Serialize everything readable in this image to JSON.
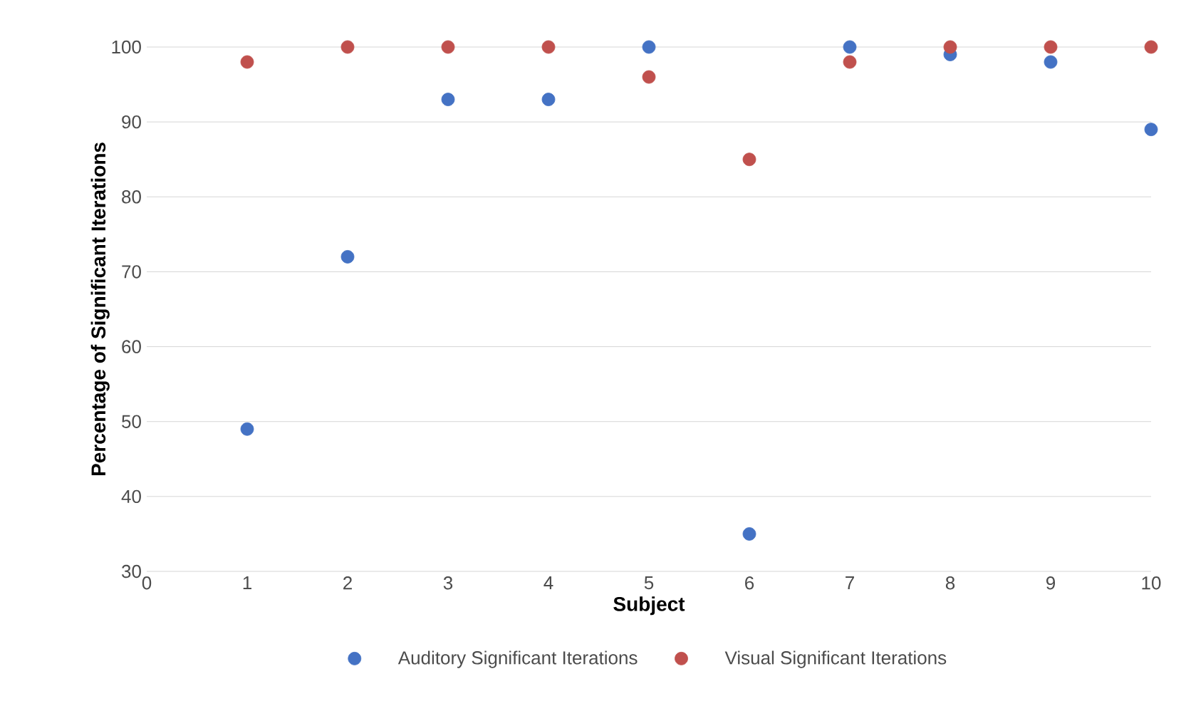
{
  "chart_data": {
    "type": "scatter",
    "xlabel": "Subject",
    "ylabel": "Percentage of Significant Iterations",
    "x": [
      1,
      2,
      3,
      4,
      5,
      6,
      7,
      8,
      9,
      10
    ],
    "series": [
      {
        "name": "Auditory Significant Iterations",
        "color": "#4472c4",
        "values": [
          49,
          72,
          93,
          93,
          100,
          35,
          100,
          99,
          98,
          89
        ]
      },
      {
        "name": "Visual Significant Iterations",
        "color": "#c0504d",
        "values": [
          98,
          100,
          100,
          100,
          96,
          85,
          98,
          100,
          100,
          100
        ]
      }
    ],
    "xlim": [
      0,
      10
    ],
    "ylim": [
      30,
      100
    ],
    "xticks": [
      0,
      1,
      2,
      3,
      4,
      5,
      6,
      7,
      8,
      9,
      10
    ],
    "yticks": [
      30,
      40,
      50,
      60,
      70,
      80,
      90,
      100
    ],
    "grid": "y",
    "legend": "bottom",
    "marker": "circle"
  }
}
